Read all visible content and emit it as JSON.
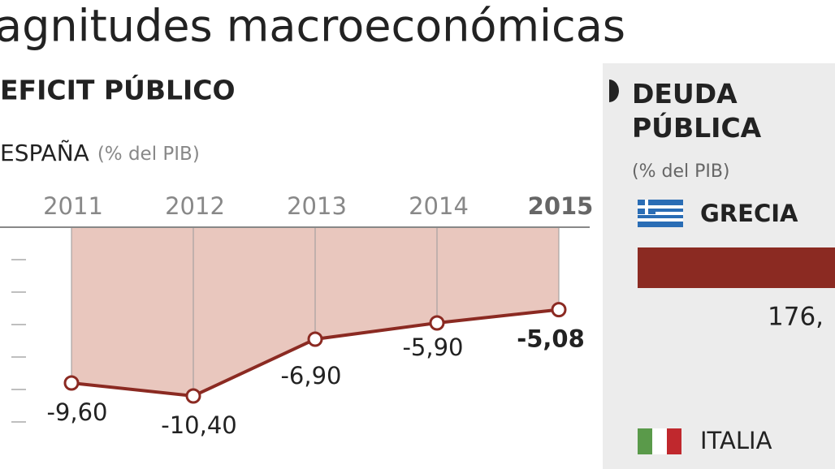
{
  "title": "agnitudes macroeconómicas",
  "chart_data": [
    {
      "type": "area-line",
      "title": "EFICIT PÚBLICO",
      "subtitle": "ESPAÑA",
      "unit": "(% del PIB)",
      "categories": [
        "2011",
        "2012",
        "2013",
        "2014",
        "2015"
      ],
      "values": [
        -9.6,
        -10.4,
        -6.9,
        -5.9,
        -5.08
      ],
      "value_labels": [
        "-9,60",
        "-10,40",
        "-6,90",
        "-5,90",
        "-5,08"
      ],
      "ylim": [
        -14.9,
        0
      ],
      "yticks": [
        -2,
        -4,
        -6,
        -8,
        -10,
        -12
      ],
      "color": "#8b2a22",
      "fill": "#e9c7be",
      "grid": true
    },
    {
      "type": "hbar",
      "title": "DEUDA PÚBLICA",
      "unit": "(% del PIB)",
      "categories": [
        "GRECIA",
        "ITALIA"
      ],
      "values": [
        176,
        null
      ],
      "value_labels": [
        "176,",
        null
      ],
      "xlim": [
        0,
        160
      ],
      "color": "#8b2a22"
    }
  ]
}
